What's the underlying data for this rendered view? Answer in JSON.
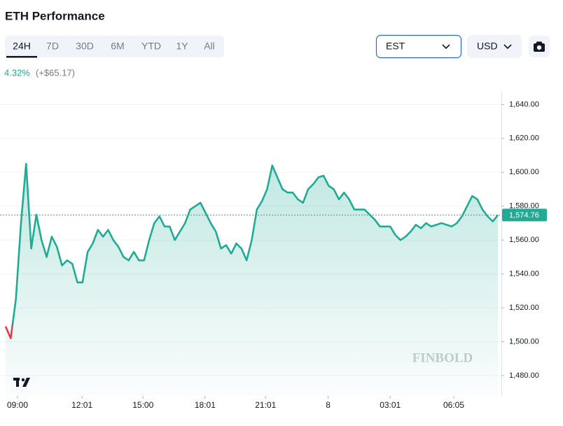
{
  "header": {
    "title": "ETH Performance",
    "change_percent": "4.32%",
    "change_amount": "(+$65.17)"
  },
  "controls": {
    "ranges": [
      "24H",
      "7D",
      "30D",
      "6M",
      "YTD",
      "1Y",
      "All"
    ],
    "active_range": 0,
    "timezone": "EST",
    "currency": "USD"
  },
  "chart_data": {
    "type": "line",
    "values": [
      1509,
      1502,
      1525,
      1570,
      1605,
      1555,
      1575,
      1560,
      1550,
      1562,
      1556,
      1545,
      1548,
      1546,
      1535,
      1535,
      1553,
      1558,
      1566,
      1562,
      1566,
      1560,
      1556,
      1550,
      1548,
      1553,
      1548,
      1548,
      1560,
      1570,
      1574,
      1568,
      1568,
      1560,
      1565,
      1570,
      1578,
      1580,
      1582,
      1576,
      1570,
      1565,
      1555,
      1557,
      1552,
      1558,
      1555,
      1548,
      1560,
      1578,
      1583,
      1590,
      1604,
      1597,
      1590,
      1588,
      1588,
      1584,
      1582,
      1590,
      1593,
      1597,
      1598,
      1592,
      1590,
      1584,
      1588,
      1584,
      1578,
      1578,
      1578,
      1575,
      1572,
      1568,
      1568,
      1568,
      1563,
      1560,
      1562,
      1565,
      1569,
      1567,
      1570,
      1568,
      1569,
      1570,
      1569,
      1568,
      1570,
      1574,
      1580,
      1586,
      1584,
      1578,
      1574,
      1571,
      1574.76
    ],
    "color": "#22ab94",
    "below_open_color": "#f23645",
    "ylim": [
      1468,
      1648
    ],
    "yticks": [
      {
        "value": 1480,
        "label": "1,480.00"
      },
      {
        "value": 1500,
        "label": "1,500.00"
      },
      {
        "value": 1520,
        "label": "1,520.00"
      },
      {
        "value": 1540,
        "label": "1,540.00"
      },
      {
        "value": 1560,
        "label": "1,560.00"
      },
      {
        "value": 1580,
        "label": "1,580.00"
      },
      {
        "value": 1600,
        "label": "1,600.00"
      },
      {
        "value": 1620,
        "label": "1,620.00"
      },
      {
        "value": 1640,
        "label": "1,640.00"
      }
    ],
    "xticks": [
      {
        "value": 2.32,
        "label": "09:00"
      },
      {
        "value": 14.9,
        "label": "12:01"
      },
      {
        "value": 26.8,
        "label": "15:00"
      },
      {
        "value": 38.9,
        "label": "18:01"
      },
      {
        "value": 50.7,
        "label": "21:01"
      },
      {
        "value": 62.9,
        "label": "8"
      },
      {
        "value": 75.0,
        "label": "03:01"
      },
      {
        "value": 87.4,
        "label": "06:05"
      }
    ],
    "last_value_label": "1,574.76",
    "grid": true,
    "watermark": "FINBOLD"
  }
}
